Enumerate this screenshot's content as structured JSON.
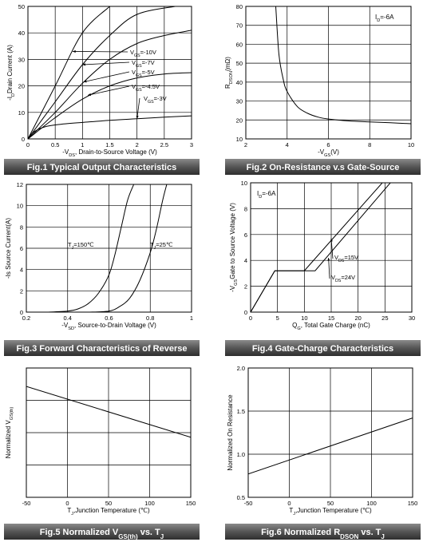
{
  "charts": [
    {
      "type": "line",
      "caption": "Fig.1 Typical Output Characteristics",
      "ylabel": "-I D Drain Current (A)",
      "xlabel": "-V DS , Drain-to-Source Voltage (V)",
      "xlim": [
        0,
        3
      ],
      "ylim": [
        0,
        50
      ],
      "xticks": [
        0,
        0.5,
        1,
        1.5,
        2,
        2.5,
        3
      ],
      "xtick_labels": [
        "0",
        "0.5",
        "1",
        "1.5",
        "2",
        "2.5",
        "3"
      ],
      "yticks": [
        0,
        10,
        20,
        30,
        40,
        50
      ],
      "ytick_labels": [
        "0",
        "10",
        "20",
        "30",
        "40",
        "50"
      ],
      "series": [
        {
          "name": "V GS =-10V",
          "x": [
            0,
            0.5,
            1.0,
            1.5
          ],
          "y": [
            0,
            20,
            40,
            52
          ]
        },
        {
          "name": "V GS =-7V",
          "x": [
            0,
            0.5,
            1.0,
            1.5,
            2.0,
            2.7
          ],
          "y": [
            0,
            14,
            28,
            39,
            47,
            51
          ]
        },
        {
          "name": "V GS =-5V",
          "x": [
            0,
            0.5,
            1.0,
            1.5,
            2.0,
            2.5,
            3.0
          ],
          "y": [
            0,
            10,
            21,
            30,
            36,
            39,
            41
          ]
        },
        {
          "name": "V GS =-4.5V",
          "x": [
            0,
            0.5,
            1.0,
            1.5,
            2.0,
            2.5,
            3.0
          ],
          "y": [
            0,
            8,
            15,
            20,
            23,
            24.5,
            25
          ]
        },
        {
          "name": "V GS =-3V",
          "x": [
            0,
            0.1,
            0.3,
            0.6,
            1.0,
            1.5,
            2.0,
            2.5,
            3.0
          ],
          "y": [
            0,
            2.5,
            4.5,
            5.5,
            6.2,
            7,
            7.6,
            8.2,
            8.7
          ]
        }
      ],
      "grid": true
    },
    {
      "type": "line",
      "caption": "Fig.2 On-Resistance v.s Gate-Source",
      "ylabel": "R DSON (mΩ)",
      "xlabel": "-V GS (V)",
      "annotation": "I D =-6A",
      "xlim": [
        2,
        10
      ],
      "ylim": [
        10,
        80
      ],
      "xticks": [
        2,
        4,
        6,
        8,
        10
      ],
      "xtick_labels": [
        "2",
        "4",
        "6",
        "8",
        "10"
      ],
      "yticks": [
        10,
        20,
        30,
        40,
        50,
        60,
        70,
        80
      ],
      "ytick_labels": [
        "10",
        "20",
        "30",
        "40",
        "50",
        "60",
        "70",
        "80"
      ],
      "series": [
        {
          "x": [
            3.45,
            3.6,
            3.8,
            4.0,
            4.5,
            5.0,
            5.5,
            6.0,
            7.0,
            8.0,
            9.0,
            10.0
          ],
          "y": [
            80,
            55,
            42,
            35,
            27,
            23.5,
            21.5,
            20.5,
            19.5,
            19,
            18.5,
            18
          ]
        }
      ],
      "grid": true
    },
    {
      "type": "line",
      "caption": "Fig.3 Forward Characteristics of Reverse",
      "ylabel": "-Is Source Current(A)",
      "xlabel": "-V SD , Source-to-Drain Voltage (V)",
      "xlim": [
        0.2,
        1
      ],
      "ylim": [
        0,
        12
      ],
      "xticks": [
        0.2,
        0.4,
        0.6,
        0.8,
        1
      ],
      "xtick_labels": [
        "0.2",
        "0.4",
        "0.6",
        "0.8",
        "1"
      ],
      "yticks": [
        0,
        2,
        4,
        6,
        8,
        10,
        12
      ],
      "ytick_labels": [
        "0",
        "2",
        "4",
        "6",
        "8",
        "10",
        "12"
      ],
      "series": [
        {
          "name": "T J =150℃",
          "x": [
            0.3,
            0.4,
            0.45,
            0.5,
            0.55,
            0.6,
            0.63,
            0.66,
            0.69,
            0.72
          ],
          "y": [
            0,
            0.1,
            0.3,
            0.8,
            1.8,
            3.5,
            5.5,
            8,
            10.5,
            12
          ]
        },
        {
          "name": "T J =25℃",
          "x": [
            0.5,
            0.6,
            0.65,
            0.7,
            0.75,
            0.8,
            0.83,
            0.86,
            0.88
          ],
          "y": [
            0,
            0.1,
            0.5,
            1.3,
            3,
            5.6,
            7.8,
            10.5,
            12
          ]
        }
      ],
      "grid": true
    },
    {
      "type": "line",
      "caption": "Fig.4 Gate-Charge Characteristics",
      "ylabel": "-V GS Gate to Source Voltage (V)",
      "xlabel": "Q G , Total Gate Charge (nC)",
      "annotation": "I D =-6A",
      "xlim": [
        0,
        30
      ],
      "ylim": [
        0,
        10
      ],
      "xticks": [
        0,
        5,
        10,
        15,
        20,
        25,
        30
      ],
      "xtick_labels": [
        "0",
        "5",
        "10",
        "15",
        "20",
        "25",
        "30"
      ],
      "yticks": [
        0,
        2,
        4,
        6,
        8,
        10
      ],
      "ytick_labels": [
        "0",
        "2",
        "4",
        "6",
        "8",
        "10"
      ],
      "series": [
        {
          "name": "V DS =15V",
          "x": [
            0,
            4.5,
            10.0,
            24.5
          ],
          "y": [
            0,
            3.2,
            3.2,
            10
          ]
        },
        {
          "name": "V DS =24V",
          "x": [
            0,
            4.5,
            12.0,
            26.0
          ],
          "y": [
            0,
            3.2,
            3.2,
            10
          ]
        }
      ],
      "grid": true
    },
    {
      "type": "line",
      "caption": "Fig.5 Normalized VGS(th) vs. TJ",
      "caption_parts": [
        "Fig.5 Normalized V",
        "GS(th)",
        " vs. T",
        "J"
      ],
      "ylabel": "Normalized V GS(th)",
      "xlabel": "T J ,Junction Temperature (℃)",
      "xlim": [
        -50,
        150
      ],
      "ylim": [
        0,
        1.4
      ],
      "xticks": [
        -50,
        0,
        50,
        100,
        150
      ],
      "xtick_labels": [
        "-50",
        "0",
        "50",
        "100",
        "150"
      ],
      "yticks": [],
      "ytick_labels": [],
      "series": [
        {
          "x": [
            -50,
            150
          ],
          "y": [
            1.2,
            0.65
          ]
        }
      ],
      "grid": true
    },
    {
      "type": "line",
      "caption": "Fig.6 Normalized RDSON vs. TJ",
      "caption_parts": [
        "Fig.6 Normalized R",
        "DSON",
        " vs. T",
        "J"
      ],
      "ylabel": "Normalized On Resistance",
      "xlabel": "T J ,Junction Temperature (℃)",
      "xlim": [
        -50,
        150
      ],
      "ylim": [
        0.5,
        2.0
      ],
      "xticks": [
        -50,
        0,
        50,
        100,
        150
      ],
      "xtick_labels": [
        "-50",
        "0",
        "50",
        "100",
        "150"
      ],
      "yticks": [
        0.5,
        1.0,
        1.5,
        2.0
      ],
      "ytick_labels": [
        "0.5",
        "1.0",
        "1.5",
        "2.0"
      ],
      "series": [
        {
          "x": [
            -50,
            150
          ],
          "y": [
            0.77,
            1.42
          ]
        }
      ],
      "grid": true
    }
  ]
}
